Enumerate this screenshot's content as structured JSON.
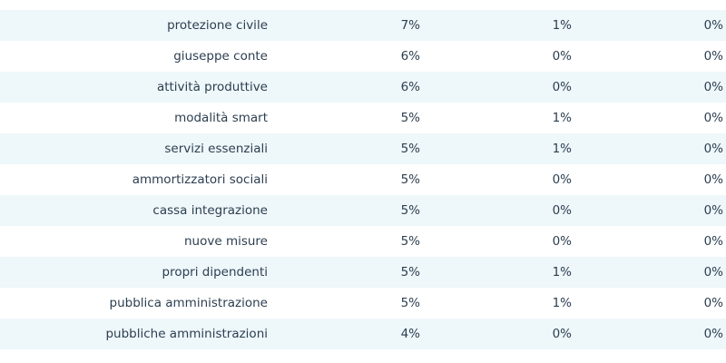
{
  "table": {
    "rows": [
      [
        "protezione civile",
        "7%",
        "1%",
        "0%"
      ],
      [
        "giuseppe conte",
        "6%",
        "0%",
        "0%"
      ],
      [
        "attività produttive",
        "6%",
        "0%",
        "0%"
      ],
      [
        "modalità smart",
        "5%",
        "1%",
        "0%"
      ],
      [
        "servizi essenziali",
        "5%",
        "1%",
        "0%"
      ],
      [
        "ammortizzatori sociali",
        "5%",
        "0%",
        "0%"
      ],
      [
        "cassa integrazione",
        "5%",
        "0%",
        "0%"
      ],
      [
        "nuove misure",
        "5%",
        "0%",
        "0%"
      ],
      [
        "propri dipendenti",
        "5%",
        "1%",
        "0%"
      ],
      [
        "pubblica amministrazione",
        "5%",
        "1%",
        "0%"
      ],
      [
        "pubbliche amministrazioni",
        "4%",
        "0%",
        "0%"
      ]
    ]
  }
}
